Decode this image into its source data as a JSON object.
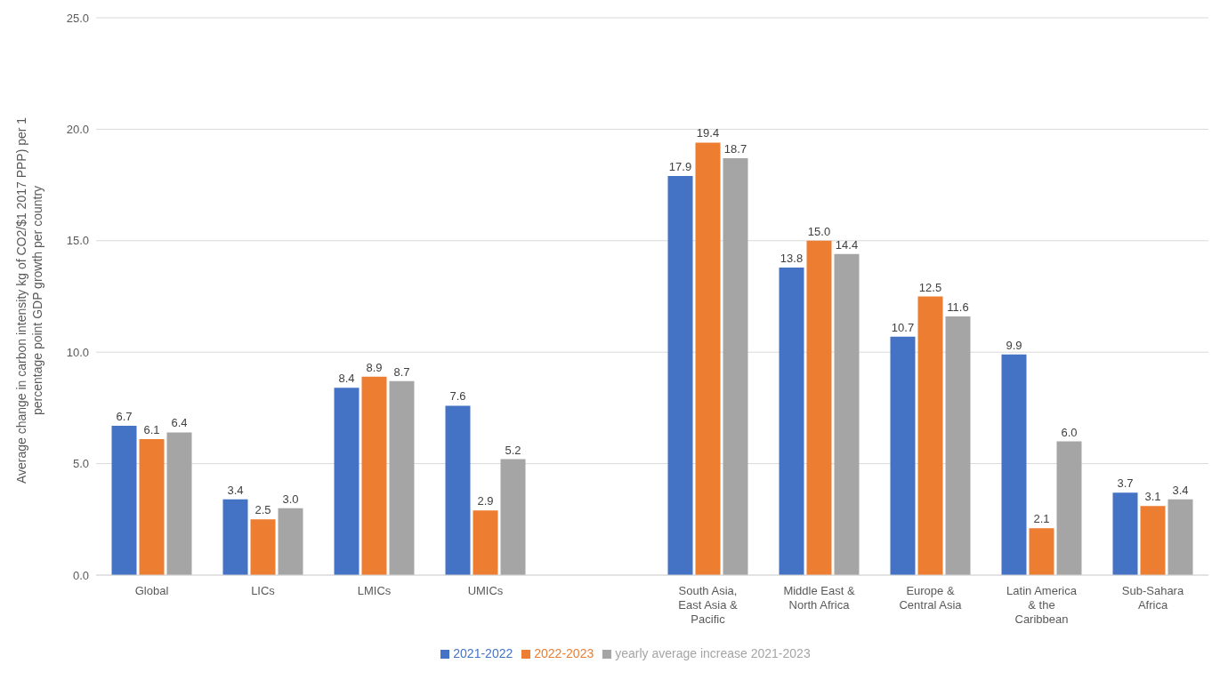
{
  "chart_data": {
    "type": "bar",
    "ylabel": "Average change in carbon intensity kg of CO2/$1 2017 PPP) per 1 percentage point GDP growth per country",
    "categories": [
      "Global",
      "LICs",
      "LMICs",
      "UMICs",
      null,
      "South Asia, East Asia & Pacific",
      "Middle East & North Africa",
      "Europe & Central Asia",
      "Latin America & the Caribbean",
      "Sub-Sahara Africa"
    ],
    "series": [
      {
        "name": "2021-2022",
        "color": "#4472c4",
        "values": [
          6.7,
          3.4,
          8.4,
          7.6,
          null,
          17.9,
          13.8,
          10.7,
          9.9,
          3.7
        ],
        "value_labels": [
          "6.7",
          "3.4",
          "8.4",
          "7.6",
          null,
          "17.9",
          "13.8",
          "10.7",
          "9.9",
          "3.7"
        ]
      },
      {
        "name": "2022-2023",
        "color": "#ed7d31",
        "values": [
          6.1,
          2.5,
          8.9,
          2.9,
          null,
          19.4,
          15.0,
          12.5,
          2.1,
          3.1
        ],
        "value_labels": [
          "6.1",
          "2.5",
          "8.9",
          "2.9",
          null,
          "19.4",
          "15.0",
          "12.5",
          "2.1",
          "3.1"
        ]
      },
      {
        "name": "yearly average increase 2021-2023",
        "color": "#a5a5a5",
        "values": [
          6.4,
          3.0,
          8.7,
          5.2,
          null,
          18.7,
          14.4,
          11.6,
          6.0,
          3.4
        ],
        "value_labels": [
          "6.4",
          "3.0",
          "8.7",
          "5.2",
          null,
          "18.7",
          "14.4",
          "11.6",
          "6.0",
          "3.4"
        ]
      }
    ],
    "ylim": [
      0,
      25
    ],
    "yticks": [
      {
        "value": 0,
        "label": "0.0"
      },
      {
        "value": 5,
        "label": "5.0"
      },
      {
        "value": 10,
        "label": "10.0"
      },
      {
        "value": 15,
        "label": "15.0"
      },
      {
        "value": 20,
        "label": "20.0"
      },
      {
        "value": 25,
        "label": "25.0"
      }
    ],
    "grid": "y",
    "legend": "bottom"
  }
}
